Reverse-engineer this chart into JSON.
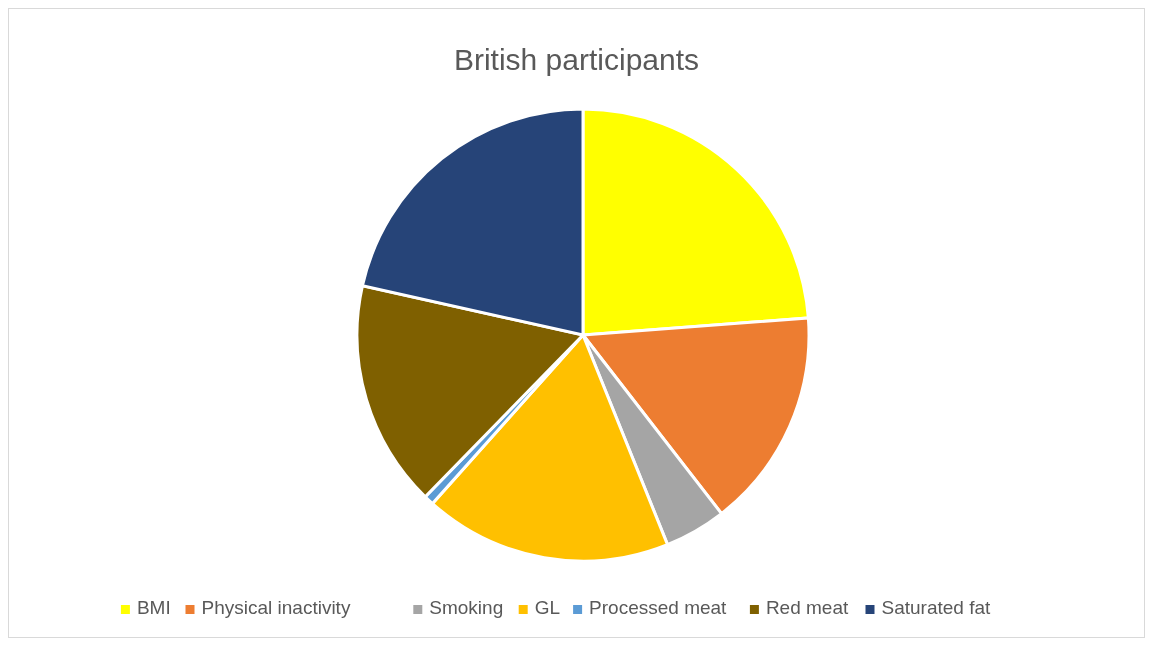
{
  "chart_data": {
    "type": "pie",
    "title": "British participants",
    "categories": [
      "BMI",
      "Physical inactivity",
      "Smoking",
      "GL",
      "Processed meat",
      "Red meat",
      "Saturated fat"
    ],
    "values": [
      23.8,
      15.7,
      4.4,
      17.7,
      0.7,
      16.2,
      21.5
    ],
    "colors": [
      "#ffff00",
      "#ed7d31",
      "#a5a5a5",
      "#ffc000",
      "#5b9bd5",
      "#7f6000",
      "#264478"
    ],
    "legend": "bottom"
  }
}
